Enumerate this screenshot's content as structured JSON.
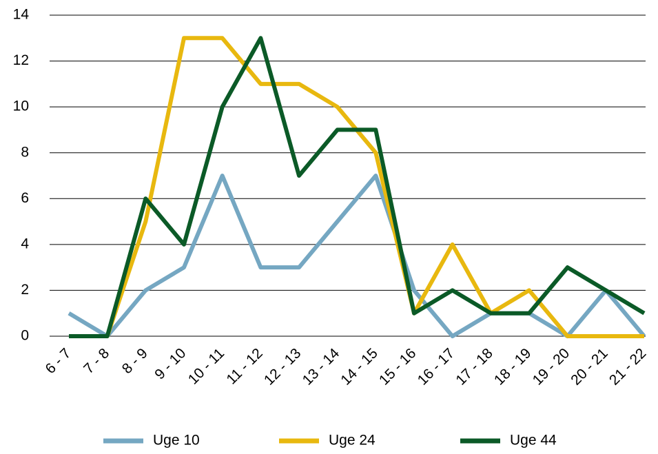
{
  "chart_data": {
    "type": "line",
    "categories": [
      "6 - 7",
      "7 - 8",
      "8 - 9",
      "9 - 10",
      "10 - 11",
      "11 - 12",
      "12 - 13",
      "13 - 14",
      "14 - 15",
      "15 - 16",
      "16 - 17",
      "17 - 18",
      "18 - 19",
      "19 - 20",
      "20 - 21",
      "21 - 22"
    ],
    "series": [
      {
        "name": "Uge 10",
        "color": "#75a7c2",
        "values": [
          1,
          0,
          2,
          3,
          7,
          3,
          3,
          5,
          7,
          2,
          0,
          1,
          1,
          0,
          2,
          0
        ]
      },
      {
        "name": "Uge 24",
        "color": "#e8b80f",
        "values": [
          0,
          0,
          5,
          13,
          13,
          11,
          11,
          10,
          8,
          1,
          4,
          1,
          2,
          0,
          0,
          0
        ]
      },
      {
        "name": "Uge 44",
        "color": "#0b5a27",
        "values": [
          0,
          0,
          6,
          4,
          10,
          13,
          7,
          9,
          9,
          1,
          2,
          1,
          1,
          3,
          2,
          1
        ]
      }
    ],
    "ylim": [
      0,
      14
    ],
    "yticks": [
      0,
      2,
      4,
      6,
      8,
      10,
      12,
      14
    ],
    "grid": true
  }
}
